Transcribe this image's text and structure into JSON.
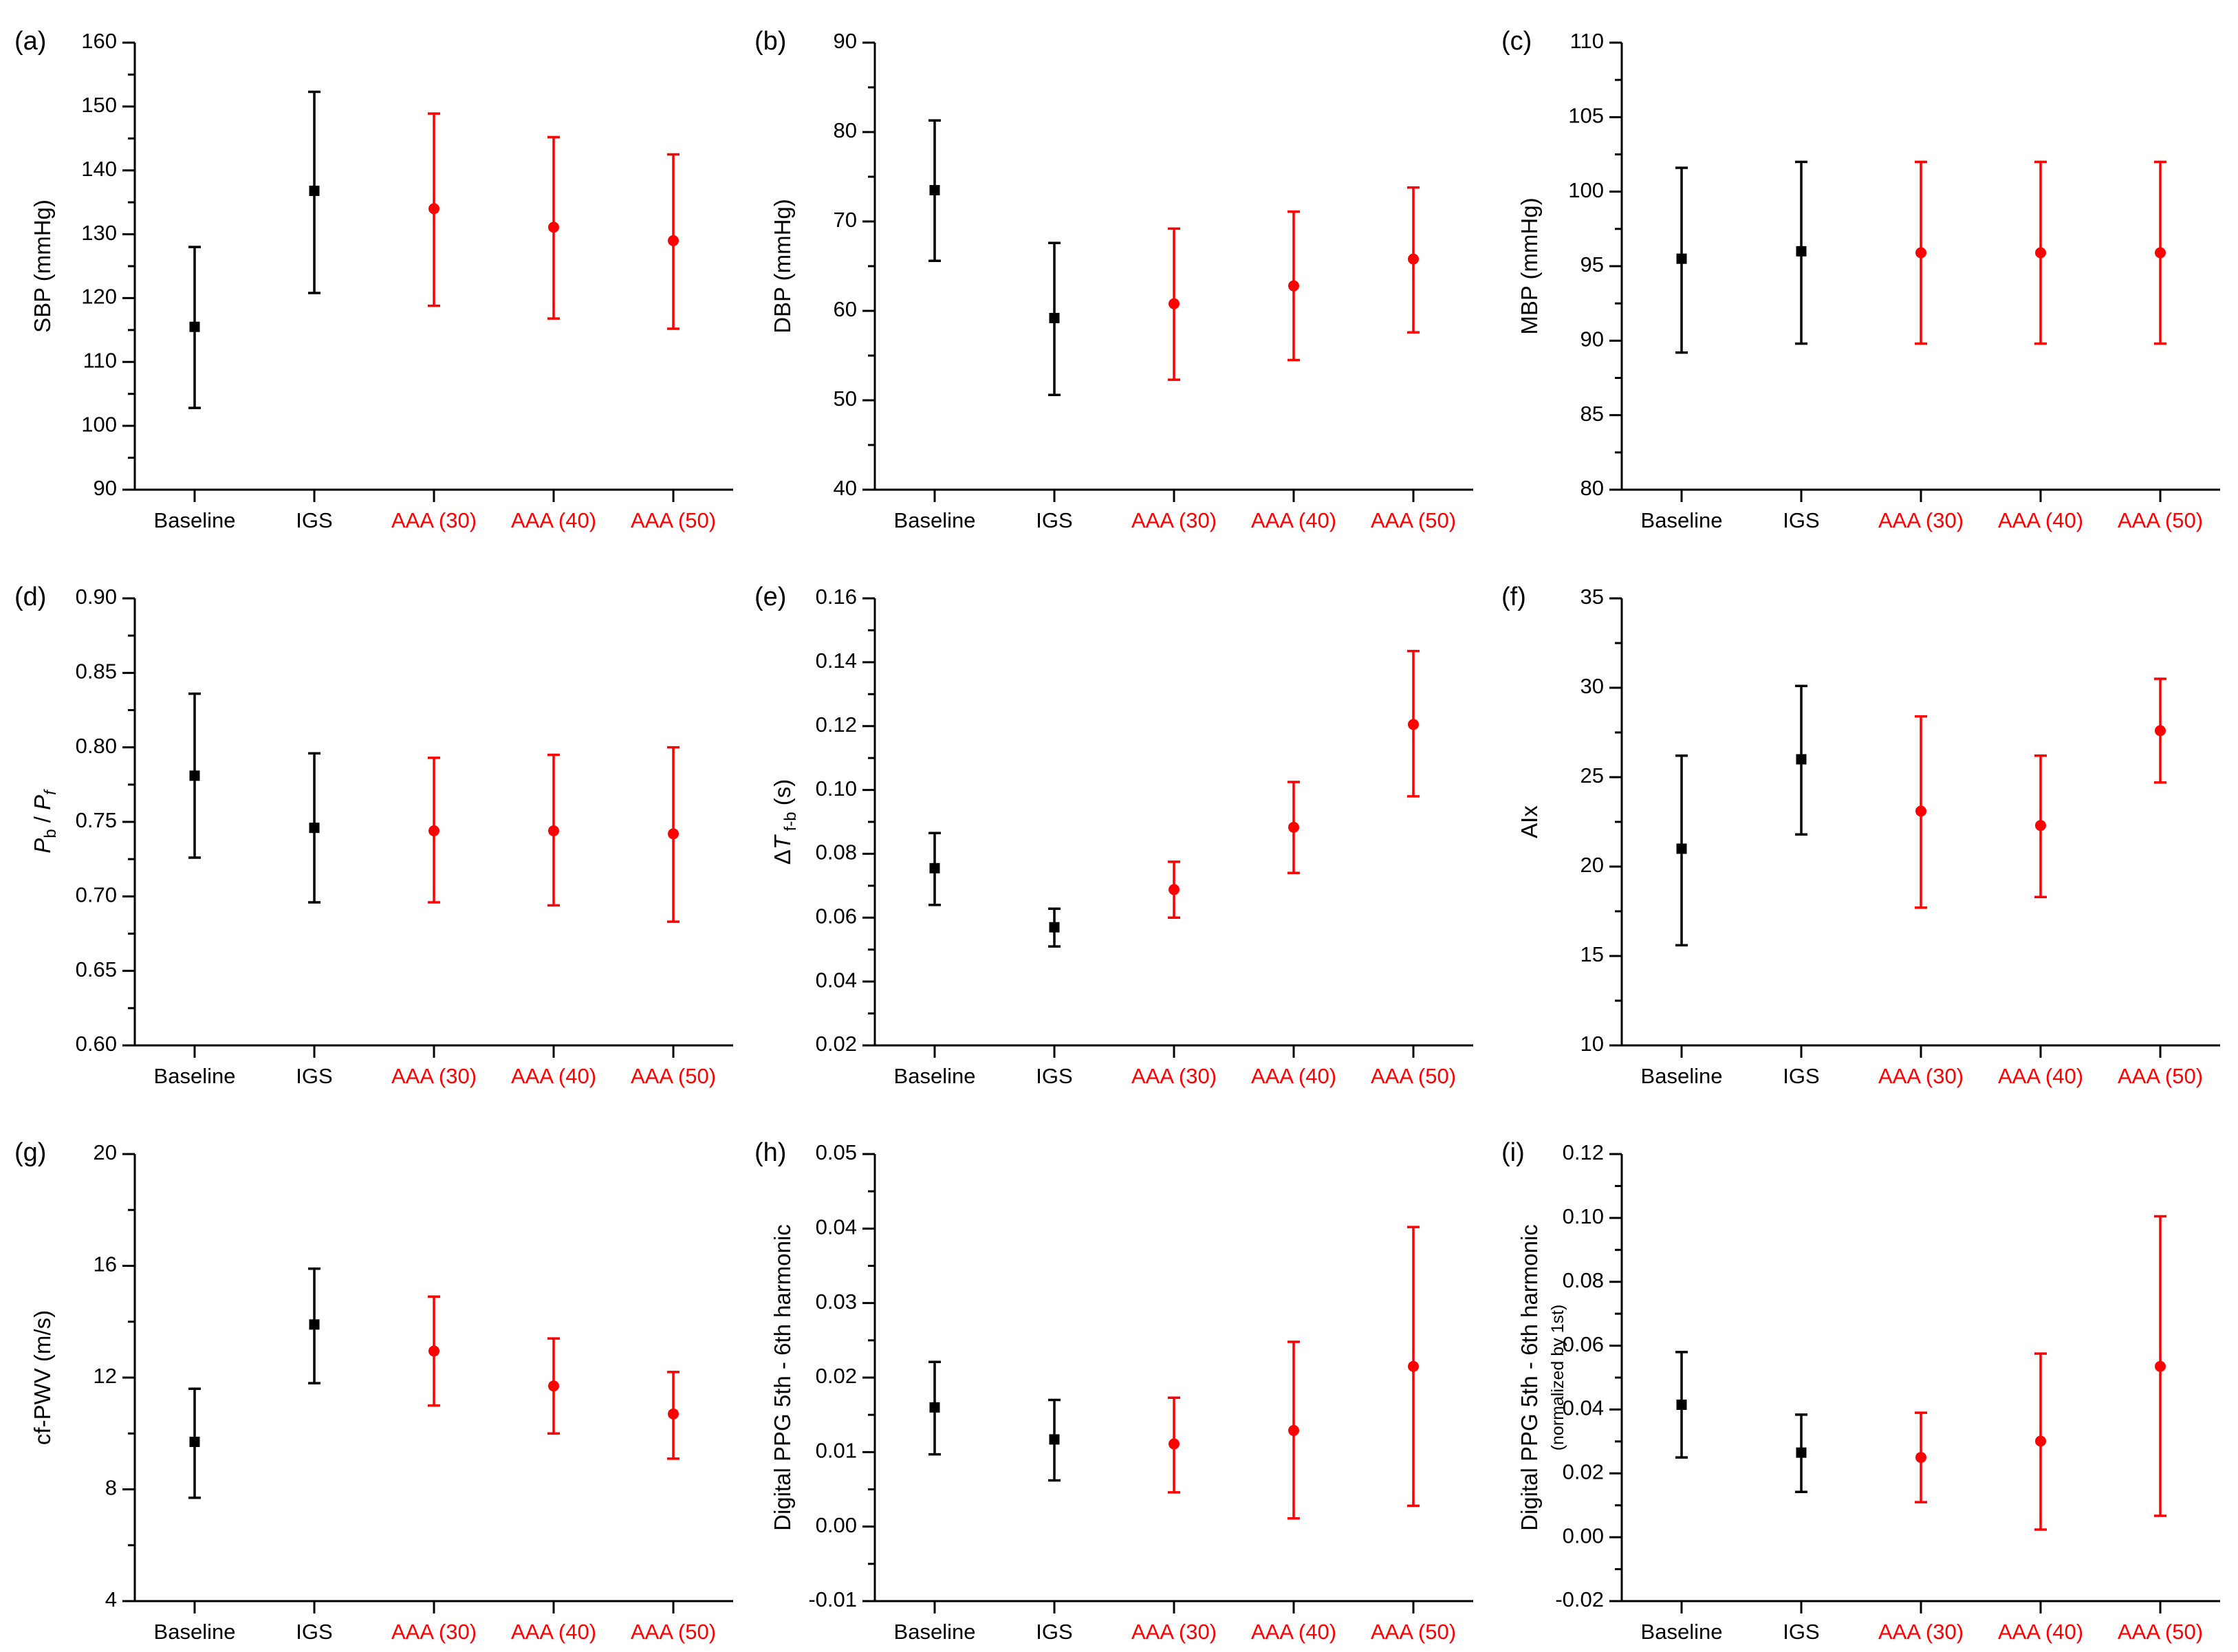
{
  "colors": {
    "control": "#000000",
    "aaa": "#ff0000",
    "axis": "#000000"
  },
  "chart_data": [
    {
      "panel": "(a)",
      "type": "errorbar",
      "ylabel_parts": [
        {
          "t": "SBP (mmHg)"
        }
      ],
      "ylim": [
        90,
        160
      ],
      "yticks": [
        "90",
        "100",
        "110",
        "120",
        "130",
        "140",
        "150",
        "160"
      ],
      "categories": [
        "Baseline",
        "IGS",
        "AAA (30)",
        "AAA (40)",
        "AAA (50)"
      ],
      "groups": [
        "control",
        "control",
        "aaa",
        "aaa",
        "aaa"
      ],
      "values": [
        115.5,
        136.8,
        134.0,
        131.1,
        129.0
      ],
      "lower": [
        102.8,
        120.8,
        118.8,
        116.8,
        115.2
      ],
      "upper": [
        128.0,
        152.3,
        148.9,
        145.2,
        142.5
      ]
    },
    {
      "panel": "(b)",
      "type": "errorbar",
      "ylabel_parts": [
        {
          "t": "DBP (mmHg)"
        }
      ],
      "ylim": [
        40,
        90
      ],
      "yticks": [
        "40",
        "50",
        "60",
        "70",
        "80",
        "90"
      ],
      "categories": [
        "Baseline",
        "IGS",
        "AAA (30)",
        "AAA (40)",
        "AAA (50)"
      ],
      "groups": [
        "control",
        "control",
        "aaa",
        "aaa",
        "aaa"
      ],
      "values": [
        73.5,
        59.2,
        60.8,
        62.8,
        65.8
      ],
      "lower": [
        65.6,
        50.6,
        52.3,
        54.5,
        57.6
      ],
      "upper": [
        81.3,
        67.6,
        69.2,
        71.1,
        73.8
      ]
    },
    {
      "panel": "(c)",
      "type": "errorbar",
      "ylabel_parts": [
        {
          "t": "MBP (mmHg)"
        }
      ],
      "ylim": [
        80,
        110
      ],
      "yticks": [
        "80",
        "85",
        "90",
        "95",
        "100",
        "105",
        "110"
      ],
      "categories": [
        "Baseline",
        "IGS",
        "AAA (30)",
        "AAA (40)",
        "AAA (50)"
      ],
      "groups": [
        "control",
        "control",
        "aaa",
        "aaa",
        "aaa"
      ],
      "values": [
        95.5,
        96.0,
        95.9,
        95.9,
        95.9
      ],
      "lower": [
        89.2,
        89.8,
        89.8,
        89.8,
        89.8
      ],
      "upper": [
        101.6,
        102.0,
        102.0,
        102.0,
        102.0
      ]
    },
    {
      "panel": "(d)",
      "type": "errorbar",
      "ylabel_parts": [
        {
          "t": "P",
          "italic": true
        },
        {
          "t": "b",
          "sub": true
        },
        {
          "t": " / "
        },
        {
          "t": "P",
          "italic": true
        },
        {
          "t": "f",
          "sub": true,
          "italic": true
        }
      ],
      "ylim": [
        0.6,
        0.9
      ],
      "yticks": [
        "0.60",
        "0.65",
        "0.70",
        "0.75",
        "0.80",
        "0.85",
        "0.90"
      ],
      "categories": [
        "Baseline",
        "IGS",
        "AAA (30)",
        "AAA (40)",
        "AAA (50)"
      ],
      "groups": [
        "control",
        "control",
        "aaa",
        "aaa",
        "aaa"
      ],
      "values": [
        0.781,
        0.746,
        0.744,
        0.744,
        0.742
      ],
      "lower": [
        0.726,
        0.696,
        0.696,
        0.694,
        0.683
      ],
      "upper": [
        0.836,
        0.796,
        0.793,
        0.795,
        0.8
      ]
    },
    {
      "panel": "(e)",
      "type": "errorbar",
      "ylabel_parts": [
        {
          "t": "Δ"
        },
        {
          "t": "T",
          "italic": true
        },
        {
          "t": " f-b",
          "sub": true
        },
        {
          "t": " (s)"
        }
      ],
      "ylim": [
        0.02,
        0.16
      ],
      "yticks": [
        "0.02",
        "0.04",
        "0.06",
        "0.08",
        "0.10",
        "0.12",
        "0.14",
        "0.16"
      ],
      "categories": [
        "Baseline",
        "IGS",
        "AAA (30)",
        "AAA (40)",
        "AAA (50)"
      ],
      "groups": [
        "control",
        "control",
        "aaa",
        "aaa",
        "aaa"
      ],
      "values": [
        0.0755,
        0.057,
        0.0688,
        0.0883,
        0.1205
      ],
      "lower": [
        0.064,
        0.051,
        0.06,
        0.074,
        0.098
      ],
      "upper": [
        0.0865,
        0.0628,
        0.0775,
        0.1025,
        0.1435
      ]
    },
    {
      "panel": "(f)",
      "type": "errorbar",
      "ylabel_parts": [
        {
          "t": "AIx"
        }
      ],
      "ylim": [
        10,
        35
      ],
      "yticks": [
        "10",
        "15",
        "20",
        "25",
        "30",
        "35"
      ],
      "categories": [
        "Baseline",
        "IGS",
        "AAA (30)",
        "AAA (40)",
        "AAA (50)"
      ],
      "groups": [
        "control",
        "control",
        "aaa",
        "aaa",
        "aaa"
      ],
      "values": [
        21.0,
        26.0,
        23.1,
        22.3,
        27.6
      ],
      "lower": [
        15.6,
        21.8,
        17.7,
        18.3,
        24.7
      ],
      "upper": [
        26.2,
        30.1,
        28.4,
        26.2,
        30.5
      ]
    },
    {
      "panel": "(g)",
      "type": "errorbar",
      "ylabel_parts": [
        {
          "t": "cf-PWV (m/s)"
        }
      ],
      "ylim": [
        4,
        20
      ],
      "yticks": [
        "4",
        "8",
        "12",
        "16",
        "20"
      ],
      "categories": [
        "Baseline",
        "IGS",
        "AAA (30)",
        "AAA (40)",
        "AAA (50)"
      ],
      "groups": [
        "control",
        "control",
        "aaa",
        "aaa",
        "aaa"
      ],
      "values": [
        9.7,
        13.9,
        12.95,
        11.7,
        10.7
      ],
      "lower": [
        7.7,
        11.8,
        11.0,
        10.0,
        9.1
      ],
      "upper": [
        11.6,
        15.9,
        14.9,
        13.4,
        12.2
      ]
    },
    {
      "panel": "(h)",
      "type": "errorbar",
      "ylabel_parts": [
        {
          "t": "Digital PPG 5th - 6th harmonic"
        }
      ],
      "ylim": [
        -0.01,
        0.05
      ],
      "yticks": [
        "-0.01",
        "0.00",
        "0.01",
        "0.02",
        "0.03",
        "0.04",
        "0.05"
      ],
      "categories": [
        "Baseline",
        "IGS",
        "AAA (30)",
        "AAA (40)",
        "AAA (50)"
      ],
      "groups": [
        "control",
        "control",
        "aaa",
        "aaa",
        "aaa"
      ],
      "values": [
        0.016,
        0.0117,
        0.0111,
        0.0129,
        0.0215
      ],
      "lower": [
        0.0097,
        0.0062,
        0.0046,
        0.0011,
        0.0028
      ],
      "upper": [
        0.0221,
        0.017,
        0.0173,
        0.0248,
        0.0402
      ]
    },
    {
      "panel": "(i)",
      "type": "errorbar",
      "ylabel_parts": [
        {
          "t": "Digital PPG 5th - 6th harmonic"
        }
      ],
      "ylabel2": "(normalized by 1st)",
      "ylim": [
        -0.02,
        0.12
      ],
      "yticks": [
        "-0.02",
        "0.00",
        "0.02",
        "0.04",
        "0.06",
        "0.08",
        "0.10",
        "0.12"
      ],
      "categories": [
        "Baseline",
        "IGS",
        "AAA (30)",
        "AAA (40)",
        "AAA (50)"
      ],
      "groups": [
        "control",
        "control",
        "aaa",
        "aaa",
        "aaa"
      ],
      "values": [
        0.0415,
        0.0265,
        0.025,
        0.0301,
        0.0535
      ],
      "lower": [
        0.025,
        0.0142,
        0.011,
        0.0024,
        0.0067
      ],
      "upper": [
        0.058,
        0.0384,
        0.039,
        0.0575,
        0.1005
      ]
    }
  ]
}
